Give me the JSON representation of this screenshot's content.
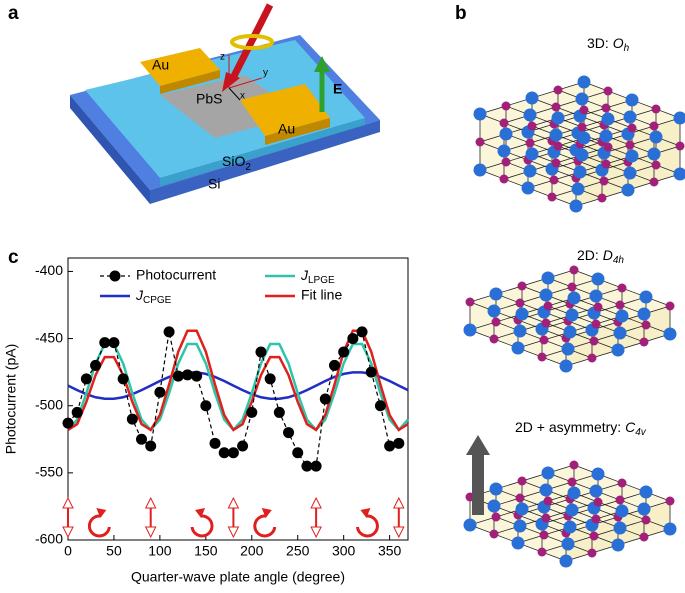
{
  "panels": {
    "a": {
      "label": "a",
      "pad_left": "Au",
      "pad_right": "Au",
      "channel": "PbS",
      "oxide": {
        "base": "SiO",
        "sub": "2"
      },
      "substrate": "Si",
      "field": "E",
      "axis_z": "z",
      "axis_y": "y",
      "axis_x": "x"
    },
    "b": {
      "label": "b",
      "top": {
        "prefix": "3D: ",
        "sym": "O",
        "sub": "h"
      },
      "middle": {
        "prefix": "2D: ",
        "sym": "D",
        "sub": "4h"
      },
      "bottom": {
        "prefix": "2D + asymmetry: ",
        "sym": "C",
        "sub": "4v"
      }
    },
    "c": {
      "label": "c"
    }
  },
  "chart_data": {
    "type": "line",
    "xlabel": "Quarter-wave plate angle (degree)",
    "ylabel": "Photocurrent (pA)",
    "xlim": [
      0,
      370
    ],
    "ylim": [
      -600,
      -390
    ],
    "xticks": [
      0,
      50,
      100,
      150,
      200,
      250,
      300,
      350
    ],
    "yticks": [
      -600,
      -550,
      -500,
      -450,
      -400
    ],
    "series": [
      {
        "name": "Photocurrent",
        "color": "#000000",
        "style": "dashed-markers",
        "x": [
          0,
          10,
          20,
          30,
          40,
          50,
          60,
          70,
          80,
          90,
          100,
          110,
          120,
          130,
          140,
          150,
          160,
          170,
          180,
          190,
          200,
          210,
          220,
          230,
          240,
          250,
          260,
          270,
          280,
          290,
          300,
          310,
          320,
          330,
          340,
          350,
          360
        ],
        "values": [
          -513,
          -505,
          -480,
          -470,
          -453,
          -453,
          -480,
          -510,
          -525,
          -530,
          -490,
          -445,
          -478,
          -477,
          -478,
          -500,
          -528,
          -535,
          -535,
          -530,
          -505,
          -460,
          -480,
          -505,
          -520,
          -535,
          -545,
          -545,
          -495,
          -470,
          -460,
          -450,
          -445,
          -475,
          -500,
          -530,
          -528
        ]
      },
      {
        "name": {
          "sym": "J",
          "sub": "CPGE"
        },
        "color": "#1f2fc4",
        "style": "line",
        "x": [
          0,
          10,
          20,
          30,
          40,
          50,
          60,
          70,
          80,
          90,
          100,
          110,
          120,
          130,
          140,
          150,
          160,
          170,
          180,
          190,
          200,
          210,
          220,
          230,
          240,
          250,
          260,
          270,
          280,
          290,
          300,
          310,
          320,
          330,
          340,
          350,
          360,
          370
        ],
        "values": [
          -485,
          -488.4,
          -491.4,
          -493.7,
          -494.8,
          -494.8,
          -493.7,
          -491.4,
          -488.4,
          -485,
          -481.6,
          -478.6,
          -476.3,
          -475.2,
          -475.2,
          -476.3,
          -478.6,
          -481.6,
          -485,
          -488.4,
          -491.4,
          -493.7,
          -494.8,
          -494.8,
          -493.7,
          -491.4,
          -488.4,
          -485,
          -481.6,
          -478.6,
          -476.3,
          -475.2,
          -475.2,
          -476.3,
          -478.6,
          -481.6,
          -485,
          -488.4
        ]
      },
      {
        "name": {
          "sym": "J",
          "sub": "LPGE"
        },
        "color": "#2ec4a8",
        "style": "line",
        "x": [
          0,
          10,
          20,
          30,
          40,
          50,
          60,
          70,
          80,
          90,
          100,
          110,
          120,
          130,
          140,
          150,
          160,
          170,
          180,
          190,
          200,
          210,
          220,
          230,
          240,
          250,
          260,
          270,
          280,
          290,
          300,
          310,
          320,
          330,
          340,
          350,
          360,
          370
        ],
        "values": [
          -518,
          -510.3,
          -490.7,
          -468.5,
          -454,
          -454,
          -468.5,
          -490.7,
          -510.3,
          -518,
          -510.3,
          -490.7,
          -468.5,
          -454,
          -454,
          -468.5,
          -490.7,
          -510.3,
          -518,
          -510.3,
          -490.7,
          -468.5,
          -454,
          -454,
          -468.5,
          -490.7,
          -510.3,
          -518,
          -510.3,
          -490.7,
          -468.5,
          -454,
          -454,
          -468.5,
          -490.7,
          -510.3,
          -518,
          -510.3
        ]
      },
      {
        "name": "Fit line",
        "color": "#e0201e",
        "style": "line",
        "x": [
          0,
          10,
          20,
          30,
          40,
          50,
          60,
          70,
          80,
          90,
          100,
          110,
          120,
          130,
          140,
          150,
          160,
          170,
          180,
          190,
          200,
          210,
          220,
          230,
          240,
          250,
          260,
          270,
          280,
          290,
          300,
          310,
          320,
          330,
          340,
          350,
          360,
          370
        ],
        "values": [
          -518,
          -513.7,
          -497.1,
          -477.2,
          -463.8,
          -463.8,
          -477.2,
          -497.1,
          -513.7,
          -518,
          -506.9,
          -484.3,
          -459.8,
          -444.2,
          -444.2,
          -459.8,
          -484.3,
          -506.9,
          -518,
          -513.7,
          -497.1,
          -477.2,
          -463.8,
          -463.8,
          -477.2,
          -497.1,
          -513.7,
          -518,
          -506.9,
          -484.3,
          -459.8,
          -444.2,
          -444.2,
          -459.8,
          -484.3,
          -506.9,
          -518,
          -513.7
        ]
      }
    ]
  }
}
